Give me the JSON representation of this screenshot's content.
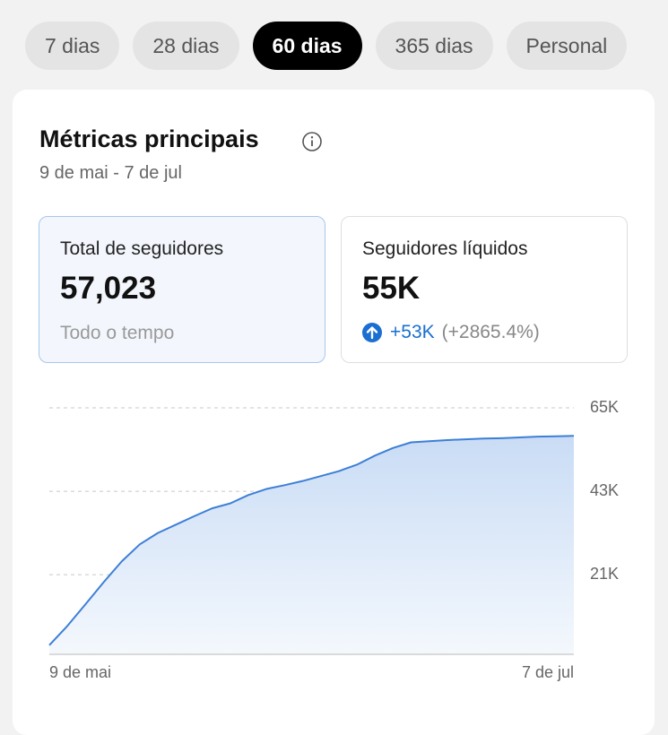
{
  "tabs": [
    {
      "label": "7 dias",
      "selected": false
    },
    {
      "label": "28 dias",
      "selected": false
    },
    {
      "label": "60 dias",
      "selected": true
    },
    {
      "label": "365 dias",
      "selected": false
    },
    {
      "label": "Personal",
      "selected": false
    }
  ],
  "card": {
    "title": "Métricas principais",
    "date_range": "9 de mai - 7 de jul"
  },
  "metrics": [
    {
      "label": "Total de seguidores",
      "value": "57,023",
      "note": "Todo o tempo"
    },
    {
      "label": "Seguidores líquidos",
      "value": "55K",
      "change": "+53K",
      "change_pct": "(+2865.4%)"
    }
  ],
  "chart_data": {
    "type": "area",
    "color": "#3d7fd6",
    "categories": [
      "9 de mai",
      null,
      null,
      null,
      null,
      null,
      null,
      null,
      null,
      null,
      null,
      null,
      null,
      null,
      null,
      null,
      null,
      null,
      null,
      null,
      null,
      null,
      null,
      null,
      null,
      null,
      null,
      null,
      null,
      "7 de jul"
    ],
    "values": [
      2400,
      7500,
      13200,
      19000,
      24500,
      29000,
      32000,
      34200,
      36400,
      38500,
      39800,
      42000,
      43600,
      44600,
      45700,
      47000,
      48300,
      50000,
      52400,
      54400,
      55900,
      56200,
      56500,
      56700,
      56900,
      57000,
      57200,
      57400,
      57500,
      57600
    ],
    "ylim": [
      0,
      65000
    ],
    "yticks": [
      {
        "value": 21000,
        "label": "21K"
      },
      {
        "value": 43000,
        "label": "43K"
      },
      {
        "value": 65000,
        "label": "65K"
      }
    ],
    "grid": true
  }
}
